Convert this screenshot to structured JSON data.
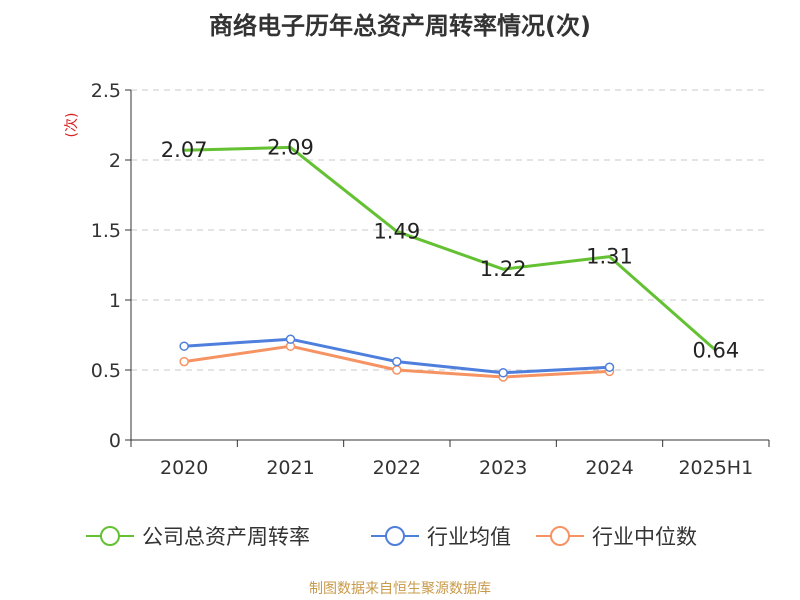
{
  "title": "商络电子历年总资产周转率情况(次)",
  "source": "制图数据来自恒生聚源数据库",
  "colors": {
    "company": "#63c132",
    "industry_mean": "#4f7fdc",
    "industry_median": "#f59363",
    "ylabel": "#d92020",
    "source": "#c89a4a",
    "grid": "#c8c8c8",
    "axis": "#333333"
  },
  "chart_data": {
    "type": "line",
    "title": "商络电子历年总资产周转率情况(次)",
    "xlabel": "",
    "ylabel": "(次)",
    "categories": [
      "2020",
      "2021",
      "2022",
      "2023",
      "2024",
      "2025H1"
    ],
    "ylim": [
      0,
      2.5
    ],
    "yticks": [
      "0",
      "0.5",
      "1",
      "1.5",
      "2",
      "2.5"
    ],
    "ytick_values": [
      0,
      0.5,
      1,
      1.5,
      2,
      2.5
    ],
    "grid": true,
    "legend_position": "bottom",
    "series": [
      {
        "name": "公司总资产周转率",
        "color": "#63c132",
        "values": [
          2.07,
          2.09,
          1.49,
          1.22,
          1.31,
          0.64
        ],
        "labels": [
          "2.07",
          "2.09",
          "1.49",
          "1.22",
          "1.31",
          "0.64"
        ],
        "markers": false
      },
      {
        "name": "行业均值",
        "color": "#4f7fdc",
        "values": [
          0.67,
          0.72,
          0.56,
          0.48,
          0.52,
          null
        ],
        "markers": true
      },
      {
        "name": "行业中位数",
        "color": "#f59363",
        "values": [
          0.56,
          0.67,
          0.5,
          0.45,
          0.49,
          null
        ],
        "markers": true
      }
    ]
  }
}
